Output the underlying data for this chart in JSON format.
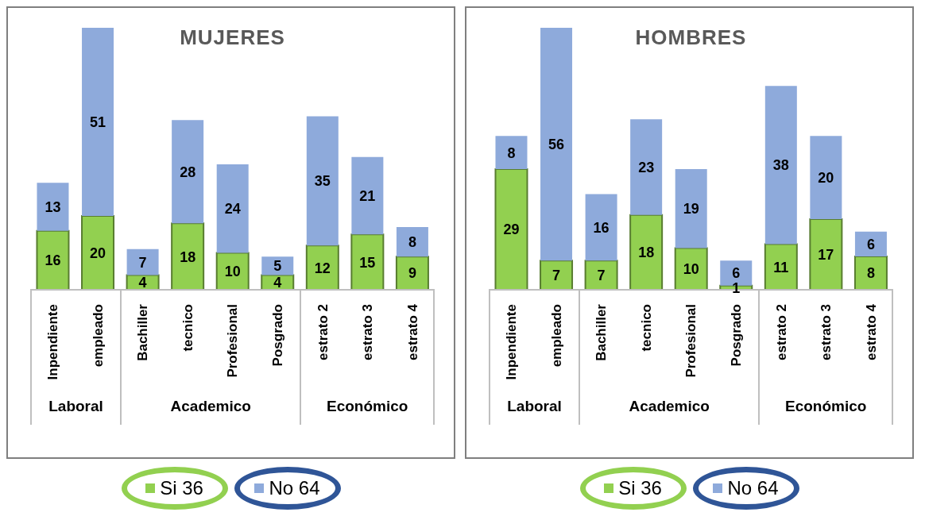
{
  "chart_data": [
    {
      "type": "bar",
      "title": "MUJERES",
      "stacked": true,
      "data_labels": true,
      "legend": "bottom",
      "grid": false,
      "categories": [
        "Inpendiente",
        "empleado",
        "Bachiller",
        "tecnico",
        "Profesional",
        "Posgrado",
        "estrato 2",
        "estrato 3",
        "estrato 4"
      ],
      "series": [
        {
          "name": "Si 36",
          "color": "#92d050",
          "values": [
            16,
            20,
            4,
            18,
            10,
            4,
            12,
            15,
            9
          ]
        },
        {
          "name": "No 64",
          "color": "#8eaadb",
          "values": [
            13,
            51,
            7,
            28,
            24,
            5,
            35,
            21,
            8
          ]
        }
      ],
      "annotations": [
        "Laboral",
        "Academico",
        "Económico"
      ]
    },
    {
      "type": "bar",
      "title": "HOMBRES",
      "stacked": true,
      "data_labels": true,
      "legend": "bottom",
      "grid": false,
      "categories": [
        "Inpendiente",
        "empleado",
        "Bachiller",
        "tecnico",
        "Profesional",
        "Posgrado",
        "estrato 2",
        "estrato 3",
        "estrato 4"
      ],
      "series": [
        {
          "name": "Si 36",
          "color": "#92d050",
          "values": [
            29,
            7,
            7,
            18,
            10,
            1,
            11,
            17,
            8
          ]
        },
        {
          "name": "No 64",
          "color": "#8eaadb",
          "values": [
            8,
            56,
            16,
            23,
            19,
            6,
            38,
            20,
            6
          ]
        }
      ],
      "annotations": [
        "Laboral",
        "Academico",
        "Económico"
      ]
    }
  ]
}
